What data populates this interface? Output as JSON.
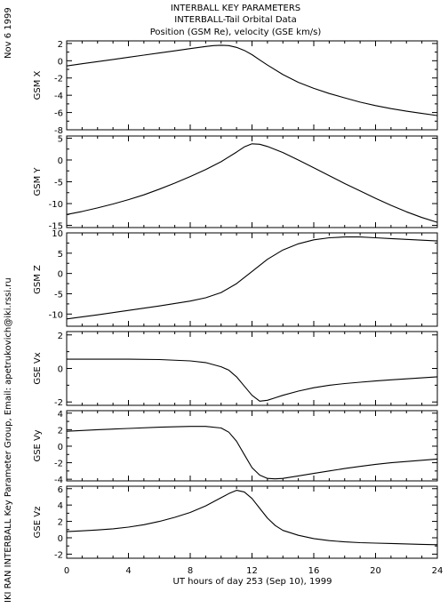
{
  "header": {
    "line1": "INTERBALL KEY PARAMETERS",
    "line2": "INTERBALL-Tail Orbital Data",
    "line3": "Position (GSM Re), velocity (GSE km/s)"
  },
  "side_text": {
    "date": "Nov  6 1999",
    "credit": "IKI RAN INTERBALL Key Parameter Group, Email: apetrukovich@iki.rssi.ru"
  },
  "x_axis_title": "UT hours of day 253 (Sep 10), 1999",
  "chart_data": [
    {
      "type": "line",
      "ylabel": "GSM X",
      "ylim": [
        -8,
        2.3
      ],
      "yticks": [
        2,
        0,
        -2,
        -4,
        -6,
        -8
      ],
      "xlim": [
        0,
        24
      ],
      "xticks": [
        0,
        4,
        8,
        12,
        16,
        20,
        24
      ],
      "x": [
        0,
        1,
        2,
        3,
        4,
        5,
        6,
        7,
        8,
        9,
        9.5,
        10,
        10.5,
        11,
        11.5,
        12,
        12.5,
        13,
        14,
        15,
        16,
        17,
        18,
        19,
        20,
        21,
        22,
        23,
        24
      ],
      "y": [
        -0.6,
        -0.35,
        -0.1,
        0.15,
        0.4,
        0.65,
        0.9,
        1.15,
        1.4,
        1.65,
        1.75,
        1.8,
        1.75,
        1.55,
        1.2,
        0.7,
        0.1,
        -0.5,
        -1.6,
        -2.5,
        -3.2,
        -3.8,
        -4.3,
        -4.8,
        -5.2,
        -5.55,
        -5.85,
        -6.1,
        -6.35
      ]
    },
    {
      "type": "line",
      "ylabel": "GSM Y",
      "ylim": [
        -15.5,
        5.5
      ],
      "yticks": [
        5,
        0,
        -5,
        -10,
        -15
      ],
      "xlim": [
        0,
        24
      ],
      "xticks": [
        0,
        4,
        8,
        12,
        16,
        20,
        24
      ],
      "x": [
        0,
        1,
        2,
        3,
        4,
        5,
        6,
        7,
        8,
        9,
        10,
        11,
        11.5,
        12,
        12.5,
        13,
        14,
        15,
        16,
        17,
        18,
        19,
        20,
        21,
        22,
        23,
        24
      ],
      "y": [
        -12.5,
        -11.8,
        -11.0,
        -10.1,
        -9.1,
        -8.0,
        -6.7,
        -5.3,
        -3.8,
        -2.2,
        -0.4,
        1.8,
        3.0,
        3.7,
        3.6,
        3.1,
        1.7,
        0.0,
        -1.8,
        -3.6,
        -5.4,
        -7.1,
        -8.8,
        -10.4,
        -11.9,
        -13.2,
        -14.3
      ]
    },
    {
      "type": "line",
      "ylabel": "GSM Z",
      "ylim": [
        -13,
        10
      ],
      "yticks": [
        10,
        5,
        0,
        -5,
        -10
      ],
      "xlim": [
        0,
        24
      ],
      "xticks": [
        0,
        4,
        8,
        12,
        16,
        20,
        24
      ],
      "x": [
        0,
        2,
        4,
        6,
        8,
        9,
        10,
        11,
        12,
        13,
        14,
        15,
        16,
        17,
        18,
        19,
        20,
        21,
        22,
        23,
        24
      ],
      "y": [
        -11.2,
        -10.2,
        -9.1,
        -8.0,
        -6.8,
        -6.0,
        -4.7,
        -2.5,
        0.5,
        3.5,
        5.8,
        7.3,
        8.3,
        8.8,
        9.0,
        9.0,
        8.8,
        8.6,
        8.4,
        8.2,
        8.0
      ]
    },
    {
      "type": "line",
      "ylabel": "GSE Vx",
      "ylim": [
        -2.2,
        2.2
      ],
      "yticks": [
        2,
        0,
        -2
      ],
      "xlim": [
        0,
        24
      ],
      "xticks": [
        0,
        4,
        8,
        12,
        16,
        20,
        24
      ],
      "x": [
        0,
        2,
        4,
        6,
        8,
        9,
        10,
        10.5,
        11,
        11.5,
        12,
        12.5,
        13,
        13.5,
        14,
        15,
        16,
        17,
        18,
        19,
        20,
        21,
        22,
        23,
        24
      ],
      "y": [
        0.55,
        0.55,
        0.55,
        0.53,
        0.45,
        0.35,
        0.1,
        -0.1,
        -0.5,
        -1.05,
        -1.6,
        -1.95,
        -1.9,
        -1.75,
        -1.6,
        -1.35,
        -1.15,
        -1.0,
        -0.9,
        -0.82,
        -0.75,
        -0.68,
        -0.62,
        -0.56,
        -0.5
      ]
    },
    {
      "type": "line",
      "ylabel": "GSE Vy",
      "ylim": [
        -4.2,
        4.3
      ],
      "yticks": [
        4,
        2,
        0,
        -2,
        -4
      ],
      "xlim": [
        0,
        24
      ],
      "xticks": [
        0,
        4,
        8,
        12,
        16,
        20,
        24
      ],
      "x": [
        0,
        2,
        4,
        6,
        8,
        9,
        10,
        10.5,
        11,
        11.5,
        12,
        12.5,
        13,
        13.5,
        14,
        15,
        16,
        17,
        18,
        19,
        20,
        21,
        22,
        23,
        24
      ],
      "y": [
        1.8,
        2.0,
        2.15,
        2.3,
        2.4,
        2.4,
        2.2,
        1.7,
        0.6,
        -1.0,
        -2.6,
        -3.5,
        -3.9,
        -3.95,
        -3.9,
        -3.6,
        -3.3,
        -3.0,
        -2.7,
        -2.45,
        -2.2,
        -2.0,
        -1.85,
        -1.7,
        -1.55
      ]
    },
    {
      "type": "line",
      "ylabel": "GSE Vz",
      "ylim": [
        -2.5,
        6.3
      ],
      "yticks": [
        6,
        4,
        2,
        0,
        -2
      ],
      "xlim": [
        0,
        24
      ],
      "xticks": [
        0,
        4,
        8,
        12,
        16,
        20,
        24
      ],
      "x": [
        0,
        1,
        2,
        3,
        4,
        5,
        6,
        7,
        8,
        9,
        10,
        10.5,
        11,
        11.5,
        12,
        12.5,
        13,
        13.5,
        14,
        15,
        16,
        17,
        18,
        19,
        20,
        21,
        22,
        23,
        24
      ],
      "y": [
        0.75,
        0.85,
        0.95,
        1.1,
        1.3,
        1.6,
        2.0,
        2.5,
        3.1,
        3.9,
        4.9,
        5.4,
        5.8,
        5.6,
        4.8,
        3.6,
        2.4,
        1.5,
        0.9,
        0.3,
        -0.1,
        -0.35,
        -0.5,
        -0.6,
        -0.65,
        -0.7,
        -0.75,
        -0.8,
        -0.85
      ]
    }
  ]
}
